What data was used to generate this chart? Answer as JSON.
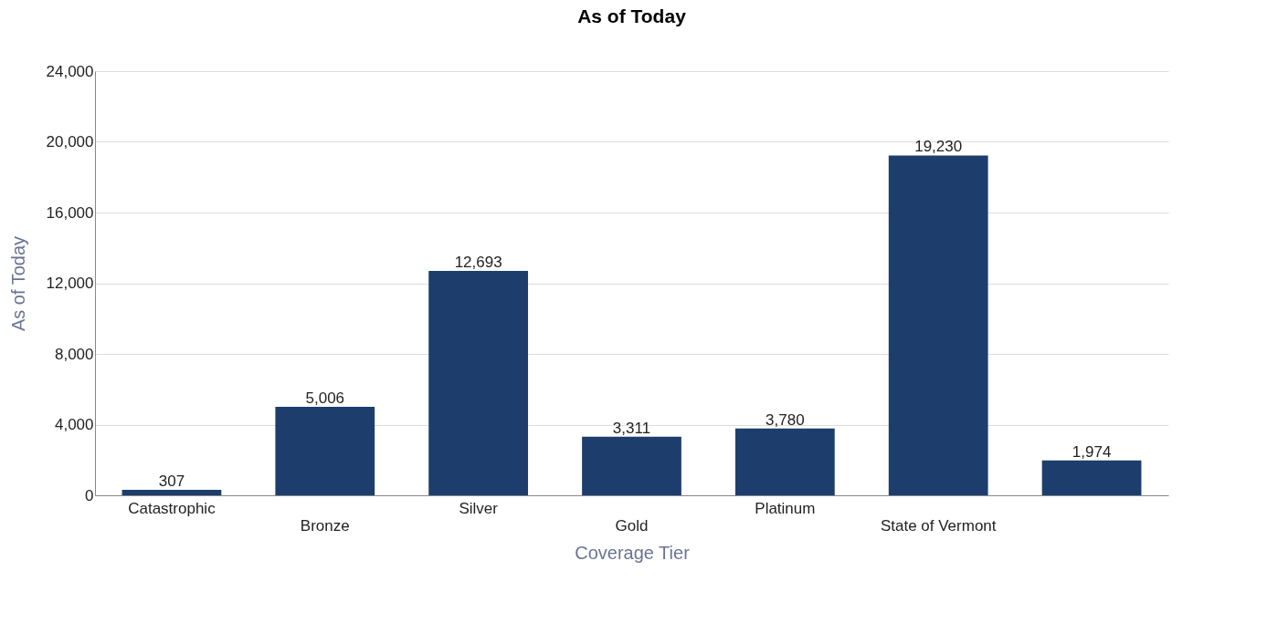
{
  "chart_data": {
    "type": "bar",
    "title": "As of Today",
    "xlabel": "Coverage Tier",
    "ylabel": "As of Today",
    "categories": [
      "Catastrophic",
      "Bronze",
      "Silver",
      "Gold",
      "Platinum",
      "State of Vermont",
      null
    ],
    "values": [
      307,
      5006,
      12693,
      3311,
      3780,
      19230,
      1974
    ],
    "value_labels": [
      "307",
      "5,006",
      "12,693",
      "3,311",
      "3,780",
      "19,230",
      "1,974"
    ],
    "color": "#1d3e6c",
    "ylim": [
      0,
      24000
    ],
    "yticks": [
      0,
      {
        "value": 4000,
        "label": "4,000"
      },
      {
        "value": 8000,
        "label": "8,000"
      },
      {
        "value": 12000,
        "label": "12,000"
      },
      {
        "value": 16000,
        "label": "16,000"
      },
      {
        "value": 20000,
        "label": "20,000"
      },
      {
        "value": 24000,
        "label": "24,000"
      }
    ],
    "grid": "y"
  }
}
